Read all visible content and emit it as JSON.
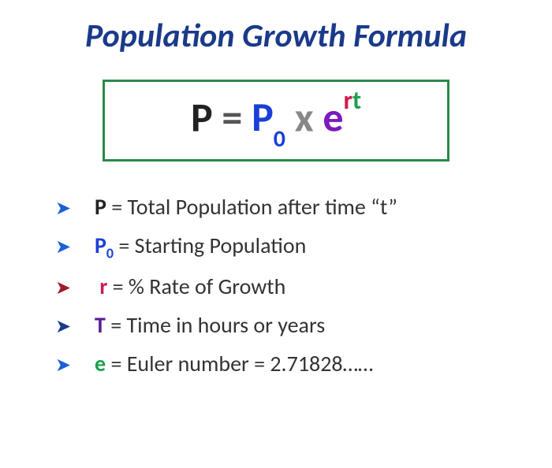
{
  "colors": {
    "title": "#1a3a8a",
    "box_border": "#2a8a4a",
    "formula_P": "#222222",
    "formula_eq": "#555555",
    "formula_P0": "#1a3fd6",
    "formula_x": "#888888",
    "formula_e": "#7a1abf",
    "formula_r": "#d11a4a",
    "formula_t": "#1aa04a",
    "bullet1": "#1a5fd6",
    "bullet2": "#1a5fd6",
    "bullet3": "#a01a2a",
    "bullet4": "#1a3a8a",
    "bullet5": "#1a5fd6",
    "sym_P": "#222222",
    "sym_P0": "#1a3fd6",
    "sym_r": "#d11a4a",
    "sym_T": "#5a1a9a",
    "sym_e": "#1aa04a",
    "desc": "#333333"
  },
  "title": "Population Growth Formula",
  "formula": {
    "P": "P",
    "eq": " = ",
    "P0_base": "P",
    "P0_sub": "0",
    "x": " x ",
    "e": "e",
    "r": "r",
    "t": "t"
  },
  "legend": [
    {
      "bullet": "➤",
      "sym": "P",
      "sub": "",
      "desc": "Total Population after time “t”"
    },
    {
      "bullet": "➤",
      "sym": "P",
      "sub": "0",
      "desc": "Starting Population"
    },
    {
      "bullet": "➤",
      "sym": "r",
      "sub": "",
      "desc": "% Rate of Growth"
    },
    {
      "bullet": "➤",
      "sym": "T",
      "sub": "",
      "desc": "Time in hours or years"
    },
    {
      "bullet": "➤",
      "sym": "e",
      "sub": "",
      "desc": "Euler number = 2.71828……"
    }
  ],
  "fontsizes": {
    "title": 42,
    "formula": 52,
    "legend": 28
  }
}
